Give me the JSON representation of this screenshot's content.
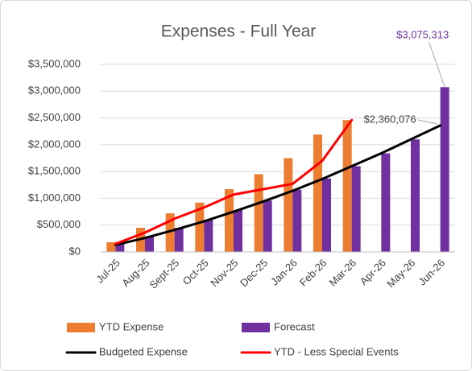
{
  "chart_data": {
    "type": "bar",
    "title": "Expenses - Full Year",
    "categories": [
      "Jul-25",
      "Aug-25",
      "Sept-25",
      "Oct-25",
      "Nov-25",
      "Dec-25",
      "Jan-26",
      "Feb-26",
      "Mar-26",
      "Apr-26",
      "May-26",
      "Jun-26"
    ],
    "series": [
      {
        "name": "YTD Expense",
        "type": "bar",
        "color": "#ED7D31",
        "values": [
          180000,
          450000,
          720000,
          920000,
          1170000,
          1450000,
          1750000,
          2190000,
          2460000,
          null,
          null,
          null
        ]
      },
      {
        "name": "Forecast",
        "type": "bar",
        "color": "#7030A0",
        "values": [
          150000,
          290000,
          450000,
          600000,
          780000,
          960000,
          1160000,
          1370000,
          1600000,
          1840000,
          2100000,
          3075313
        ],
        "value_labels": [
          null,
          null,
          null,
          null,
          null,
          null,
          null,
          null,
          null,
          null,
          null,
          "$3,075,313"
        ]
      },
      {
        "name": "Budgeted Expense",
        "type": "line",
        "color": "#000000",
        "values": [
          130000,
          260000,
          410000,
          570000,
          750000,
          940000,
          1140000,
          1360000,
          1600000,
          1840000,
          2100000,
          2360076
        ],
        "value_labels": [
          null,
          null,
          null,
          null,
          null,
          null,
          null,
          null,
          null,
          null,
          null,
          "$2,360,076"
        ]
      },
      {
        "name": "YTD - Less Special Events",
        "type": "line",
        "color": "#FF0000",
        "values": [
          150000,
          360000,
          620000,
          830000,
          1070000,
          1170000,
          1270000,
          1700000,
          2460000,
          null,
          null,
          null
        ]
      }
    ],
    "ylim": [
      0,
      3500000
    ],
    "yticks": [
      {
        "value": 0,
        "label": "$0"
      },
      {
        "value": 500000,
        "label": "$500,000"
      },
      {
        "value": 1000000,
        "label": "$1,000,000"
      },
      {
        "value": 1500000,
        "label": "$1,500,000"
      },
      {
        "value": 2000000,
        "label": "$2,000,000"
      },
      {
        "value": 2500000,
        "label": "$2,500,000"
      },
      {
        "value": 3000000,
        "label": "$3,000,000"
      },
      {
        "value": 3500000,
        "label": "$3,500,000"
      }
    ],
    "grid": true
  }
}
